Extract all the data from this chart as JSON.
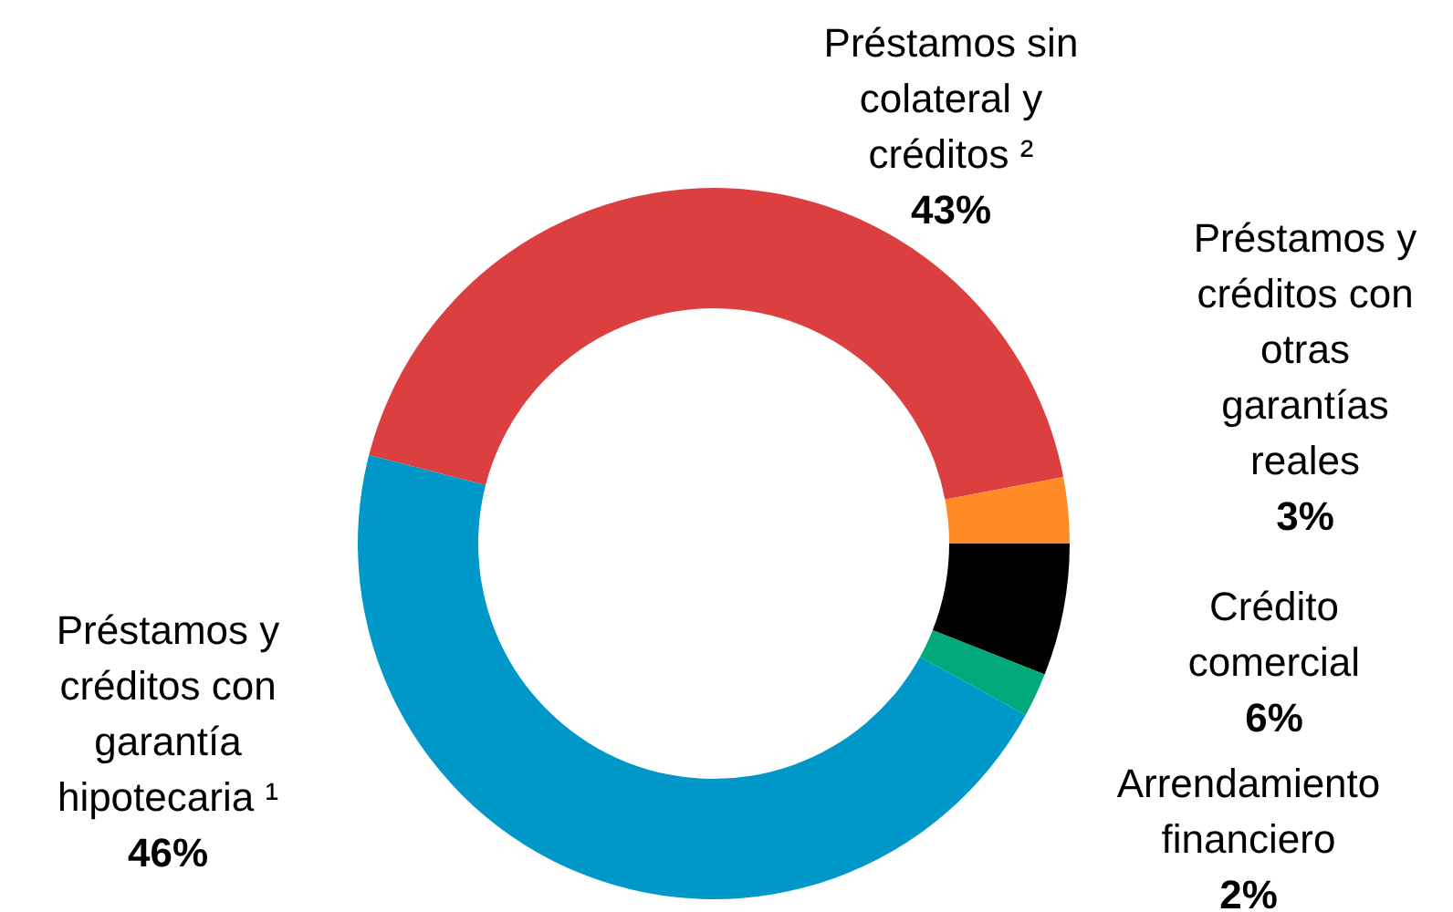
{
  "chart_data": {
    "type": "donut",
    "categories": [
      "Préstamos sin colateral y créditos ²",
      "Préstamos y créditos con otras garantías reales",
      "Crédito comercial",
      "Arrendamiento financiero",
      "Préstamos y créditos con garantía hipotecaria ¹"
    ],
    "values": [
      43,
      3,
      6,
      2,
      46
    ],
    "value_labels": [
      "43%",
      "3%",
      "6%",
      "2%",
      "46%"
    ],
    "colors": [
      "#dc3f3f",
      "#ff8a26",
      "#000000",
      "#00a87a",
      "#0098c8"
    ]
  }
}
